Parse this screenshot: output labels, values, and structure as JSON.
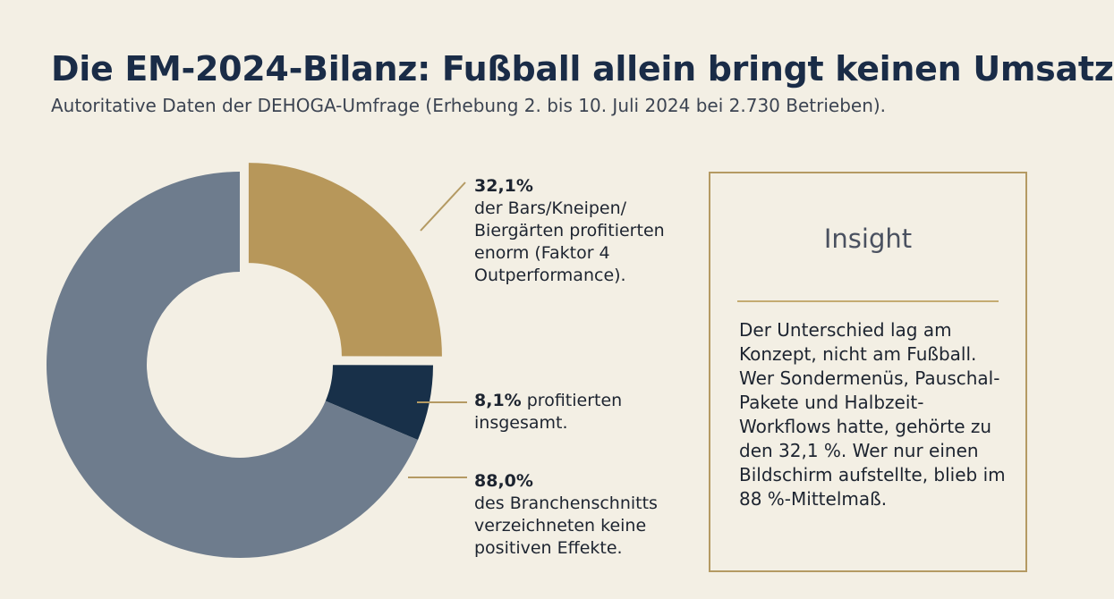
{
  "header": {
    "title": "Die EM-2024-Bilanz: Fußball allein bringt keinen Umsatz",
    "subtitle": "Autoritative Daten der DEHOGA-Umfrage (Erhebung 2. bis 10. Juli 2024 bei 2.730 Betrieben)."
  },
  "chart_data": {
    "type": "pie",
    "variant": "donut",
    "title": "Die EM-2024-Bilanz: Fußball allein bringt keinen Umsatz",
    "slices": [
      {
        "key": "bars",
        "value": 32.1,
        "color": "#b7975a",
        "exploded": true
      },
      {
        "key": "total",
        "value": 8.1,
        "color": "#183049",
        "exploded": false
      },
      {
        "key": "avg",
        "value": 88.0,
        "color": "#6e7c8d",
        "exploded": false
      }
    ],
    "leader_line_color": "#b49a63",
    "labels": {
      "bars": {
        "value": "32,1%",
        "text": "der Bars/Kneipen/ Biergärten profitierten enorm (Faktor 4 Outperformance)."
      },
      "total": {
        "value": "8,1%",
        "text": "profitierten insgesamt."
      },
      "avg": {
        "value": "88,0%",
        "text": "des Branchenschnitts verzeichneten keine positiven Effekte."
      }
    }
  },
  "insight": {
    "title": "Insight",
    "text": "Der Unterschied lag am Konzept, nicht am Fußball. Wer Sondermenüs, Pauschal-Pakete und Halbzeit-Workflows hatte, gehörte zu den 32,1 %. Wer nur einen Bildschirm aufstellte, blieb im 88 %-Mittelmaß."
  }
}
